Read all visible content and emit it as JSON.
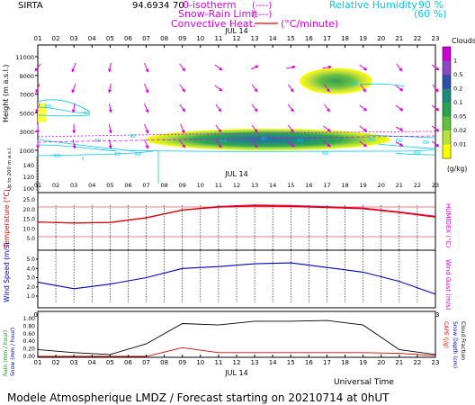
{
  "header": {
    "station": "SIRTA",
    "station_code": "94.6934",
    "station_overlap": "70",
    "legend_zero": "0-isotherm",
    "legend_zero_sample": "(----)",
    "legend_snow": "Snow-Rain Limit",
    "legend_snow_sample": "(----)",
    "legend_conv": "Convective Heat.",
    "legend_conv_unit": "(°C/minute)",
    "legend_rh": "Relative Humidity",
    "rh_90": "90 %",
    "rh_60": "(60 %)"
  },
  "date_label": "JUL 14",
  "hours": [
    "01",
    "02",
    "03",
    "04",
    "05",
    "06",
    "07",
    "08",
    "09",
    "10",
    "11",
    "12",
    "13",
    "14",
    "15",
    "16",
    "17",
    "18",
    "19",
    "20",
    "21",
    "22",
    "23"
  ],
  "footer": {
    "universal_time": "Universal Time",
    "model_text": "Modele Atmospherique LMDZ / Forecast starting on 20210714 at 0hUT"
  },
  "colors": {
    "axis_magenta": "#e000e0",
    "temp_red": "#e00000",
    "wind_blue": "#0000c0",
    "rain_black": "#000000",
    "snow_red": "#e00000",
    "cyan": "#00c8e8",
    "wind_arrow": "#e000e0"
  },
  "chart_data": [
    {
      "type": "heatmap",
      "title": "",
      "ylabel": "Height (m a.s.l.)",
      "ylabel2": "Up to 200 m a.s.l.",
      "yticks_upper": [
        "11000",
        "9000",
        "7000",
        "5000",
        "3000",
        "1000"
      ],
      "yticks_lower": [
        "140",
        "120",
        "100"
      ],
      "colorbar": {
        "title": "Clouds",
        "unit": "(g/kg)",
        "labels": [
          "1",
          "0.5",
          "0.2",
          "0.1",
          "0.05",
          "0.02",
          "0.01"
        ],
        "colors": [
          "#cc00cc",
          "#8848c0",
          "#3050a8",
          "#208880",
          "#2aa050",
          "#60c040",
          "#b8e040",
          "#ffff00"
        ]
      },
      "cloud_layers": [
        {
          "hours": [
            15.5,
            19.5
          ],
          "height_m": [
            7000,
            9800
          ],
          "max_g_kg": 0.1
        },
        {
          "hours": [
            7.0,
            20.5
          ],
          "height_m": [
            1000,
            3300
          ],
          "max_g_kg": 0.5
        },
        {
          "hours": [
            0.5,
            1.5
          ],
          "height_m": [
            4000,
            6000
          ],
          "max_g_kg": 0.01
        }
      ],
      "rh_contour_labels": [
        "60",
        "60",
        "90",
        "60",
        "60",
        "90",
        "90",
        "90",
        "60",
        "60",
        "60",
        "60",
        "60",
        "60",
        "60",
        "60"
      ]
    },
    {
      "type": "line",
      "ylabel": "Temperature (°C)",
      "ylabel2": "HUMIDEX (°C)",
      "yticks": [
        "25.0",
        "20.0",
        "15.0",
        "10.0",
        "5.0"
      ],
      "ylim": [
        5,
        25
      ],
      "x": [
        1,
        3,
        5,
        7,
        9,
        11,
        13,
        15,
        17,
        19,
        21,
        23
      ],
      "series": [
        {
          "values": [
            13.5,
            13.0,
            13.3,
            15.7,
            19.7,
            21.5,
            22.3,
            22.0,
            21.4,
            20.7,
            18.7,
            16.5
          ]
        },
        {
          "values": [
            13.5,
            13.0,
            13.3,
            15.7,
            19.7,
            21.2,
            21.8,
            21.5,
            21.0,
            20.4,
            18.4,
            16.0
          ]
        }
      ]
    },
    {
      "type": "line",
      "ylabel": "Wind Speed (m/s)",
      "ylabel2": "Wind Gust (m/s)",
      "yticks": [
        "5.0",
        "4.0",
        "3.0",
        "2.0",
        "1.0"
      ],
      "ylim": [
        0.5,
        5.3
      ],
      "x": [
        1,
        3,
        5,
        7,
        9,
        11,
        13,
        15,
        17,
        19,
        21,
        23
      ],
      "series": [
        {
          "values": [
            2.5,
            1.8,
            2.3,
            3.0,
            4.0,
            4.2,
            4.5,
            4.6,
            4.1,
            3.6,
            2.6,
            1.2
          ]
        }
      ]
    },
    {
      "type": "line",
      "ylabel": "Rain (mm / hour)",
      "ylabel_snow": "Snow (mm / hour)",
      "ylabel2": "CAPE (J/g)",
      "ylabel3": "Snow Depth (cm)",
      "ylabel4": "Cloud Fraction",
      "yticks": [
        "1.00",
        "0.80",
        "0.60",
        "0.40",
        "0.20",
        "0.00"
      ],
      "ylim": [
        0,
        1
      ],
      "x": [
        1,
        3,
        5,
        7,
        9,
        11,
        13,
        15,
        17,
        19,
        21,
        23
      ],
      "series": [
        {
          "values": [
            0.18,
            0.1,
            0.05,
            0.33,
            0.87,
            0.83,
            0.93,
            0.93,
            0.95,
            0.83,
            0.18,
            0.05
          ]
        },
        {
          "values": [
            0.0,
            0.0,
            0.0,
            0.0,
            0.23,
            0.1,
            0.1,
            0.1,
            0.1,
            0.1,
            0.08,
            0.02
          ]
        }
      ]
    }
  ]
}
